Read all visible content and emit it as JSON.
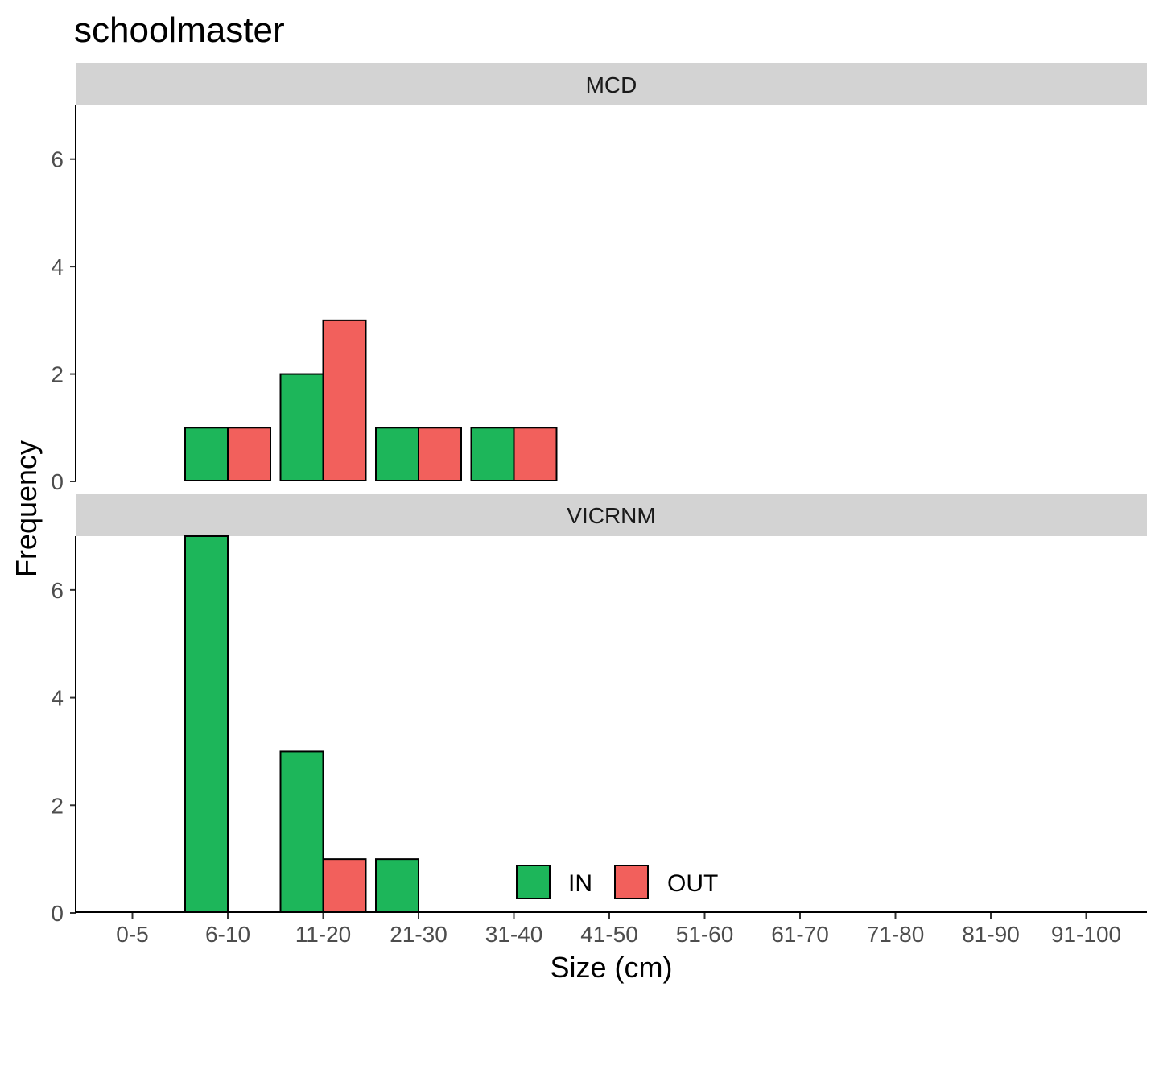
{
  "chart_data": {
    "type": "bar",
    "title": "schoolmaster",
    "xlabel": "Size (cm)",
    "ylabel": "Frequency",
    "ylim": [
      0,
      7
    ],
    "yticks": [
      0,
      2,
      4,
      6
    ],
    "categories": [
      "0-5",
      "6-10",
      "11-20",
      "21-30",
      "31-40",
      "41-50",
      "51-60",
      "61-70",
      "71-80",
      "81-90",
      "91-100"
    ],
    "legend": {
      "position": "bottom",
      "entries": [
        "IN",
        "OUT"
      ]
    },
    "grid": false,
    "colors": {
      "IN": "#1db65a",
      "OUT": "#f2605c",
      "strip": "#d3d3d3",
      "outline": "#000000"
    },
    "facets": [
      {
        "label": "MCD",
        "series": [
          {
            "name": "IN",
            "values": [
              0,
              1,
              2,
              1,
              1,
              0,
              0,
              0,
              0,
              0,
              0
            ]
          },
          {
            "name": "OUT",
            "values": [
              0,
              1,
              3,
              1,
              1,
              0,
              0,
              0,
              0,
              0,
              0
            ]
          }
        ]
      },
      {
        "label": "VICRNM",
        "series": [
          {
            "name": "IN",
            "values": [
              0,
              7,
              3,
              1,
              0,
              0,
              0,
              0,
              0,
              0,
              0
            ]
          },
          {
            "name": "OUT",
            "values": [
              0,
              0,
              1,
              0,
              0,
              0,
              0,
              0,
              0,
              0,
              0
            ]
          }
        ]
      }
    ]
  }
}
